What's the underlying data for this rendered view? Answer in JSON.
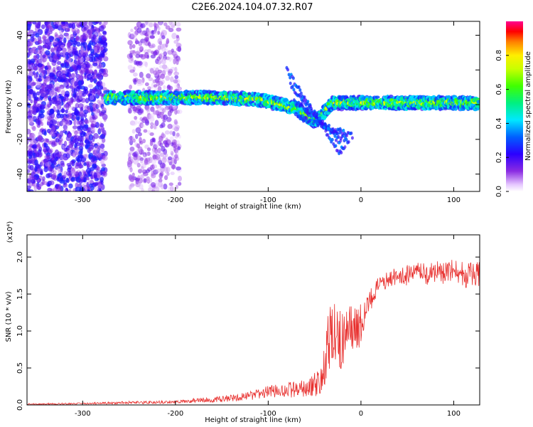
{
  "title": "C2E6.2024.104.07.32.R07",
  "colors": {
    "axis": "#000000",
    "snr_line": "#e8302e",
    "background": "#ffffff"
  },
  "chart_data": [
    {
      "type": "heatmap",
      "name": "spectrogram",
      "xlabel": "Height of straight line (km)",
      "ylabel": "Frequency (Hz)",
      "xlim": [
        -360,
        128
      ],
      "ylim": [
        -50,
        48
      ],
      "x_ticks": [
        -300,
        -200,
        -100,
        0,
        100
      ],
      "x_tick_labels": [
        "-300",
        "-200",
        "-100",
        "0",
        "100"
      ],
      "y_ticks": [
        -40,
        -20,
        0,
        20,
        40
      ],
      "y_tick_labels": [
        "-40",
        "-20",
        "0",
        "20",
        "40"
      ],
      "colorbar": {
        "label": "Normalized spectral amplitude",
        "range": [
          0,
          1
        ],
        "ticks": [
          0.0,
          0.2,
          0.4,
          0.6,
          0.8
        ],
        "tick_labels": [
          "0.0",
          "0.2",
          "0.4",
          "0.6",
          "0.8"
        ],
        "colormap": "rainbow (white-violet-blue-cyan-green-yellow-red-magenta)"
      },
      "features": [
        {
          "name": "noise region",
          "x_range": [
            -360,
            -275
          ],
          "freq_range": [
            -50,
            48
          ],
          "amplitude": 0.2
        },
        {
          "name": "faint noise band",
          "x_range": [
            -250,
            -195
          ],
          "freq_range": [
            -50,
            48
          ],
          "amplitude": 0.12
        },
        {
          "name": "main signal band",
          "x_range": [
            -275,
            128
          ],
          "center_freq": [
            4,
            4,
            3,
            -2,
            -10,
            1,
            1
          ],
          "center_x": [
            -275,
            -150,
            -110,
            -70,
            -50,
            -30,
            128
          ],
          "amplitude": 0.55
        },
        {
          "name": "dispersive branches",
          "x_range": [
            -80,
            -20
          ],
          "freq_range": [
            -30,
            20
          ],
          "amplitude": 0.3
        }
      ]
    },
    {
      "type": "line",
      "name": "snr",
      "xlabel": "Height of straight line (km)",
      "ylabel": "SNR (10 * v/v)",
      "y_multiplier": "(x10⁴)",
      "xlim": [
        -360,
        128
      ],
      "ylim": [
        0,
        2.3
      ],
      "x_ticks": [
        -300,
        -200,
        -100,
        0,
        100
      ],
      "x_tick_labels": [
        "-300",
        "-200",
        "-100",
        "0",
        "100"
      ],
      "y_ticks": [
        0.0,
        0.5,
        1.0,
        1.5,
        2.0
      ],
      "y_tick_labels": [
        "0.0",
        "0.5",
        "1.0",
        "1.5",
        "2.0"
      ],
      "series": [
        {
          "name": "SNR",
          "x": [
            -360,
            -300,
            -250,
            -200,
            -180,
            -150,
            -120,
            -100,
            -80,
            -60,
            -45,
            -40,
            -35,
            -30,
            -25,
            -20,
            -15,
            -10,
            -5,
            0,
            5,
            10,
            15,
            20,
            30,
            40,
            50,
            60,
            70,
            80,
            90,
            100,
            110,
            120,
            128
          ],
          "values": [
            0.01,
            0.02,
            0.03,
            0.04,
            0.06,
            0.08,
            0.12,
            0.18,
            0.2,
            0.22,
            0.3,
            0.45,
            0.8,
            1.0,
            0.85,
            0.9,
            1.1,
            1.05,
            1.0,
            1.1,
            1.25,
            1.4,
            1.55,
            1.62,
            1.7,
            1.75,
            1.75,
            1.78,
            1.76,
            1.8,
            1.78,
            1.8,
            1.75,
            1.78,
            1.75
          ],
          "noise_amplitude": [
            0.01,
            0.01,
            0.02,
            0.02,
            0.03,
            0.04,
            0.06,
            0.08,
            0.1,
            0.12,
            0.2,
            0.35,
            0.45,
            0.45,
            0.45,
            0.45,
            0.3,
            0.3,
            0.35,
            0.3,
            0.2,
            0.18,
            0.15,
            0.12,
            0.12,
            0.12,
            0.15,
            0.15,
            0.15,
            0.15,
            0.15,
            0.18,
            0.18,
            0.18,
            0.18
          ]
        }
      ]
    }
  ]
}
